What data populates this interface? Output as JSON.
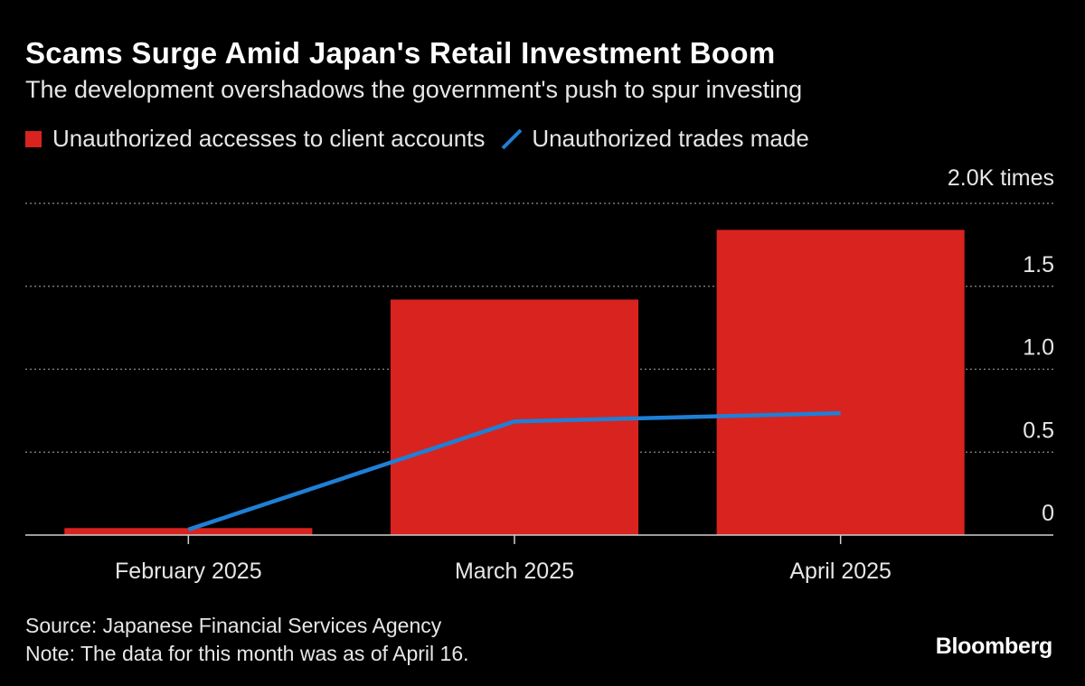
{
  "title": "Scams Surge Amid Japan's Retail Investment Boom",
  "subtitle": "The development overshadows the government's push to spur investing",
  "colors": {
    "bar": "#d9231f",
    "line": "#1f7fd6",
    "grid": "#8c8c8c",
    "background": "#000000"
  },
  "legend": [
    {
      "label": "Unauthorized accesses to client accounts",
      "kind": "bar",
      "color": "#d9231f"
    },
    {
      "label": "Unauthorized trades made",
      "kind": "line",
      "color": "#1f7fd6"
    }
  ],
  "chart_data": {
    "type": "bar",
    "categories": [
      "February 2025",
      "March 2025",
      "April 2025"
    ],
    "series": [
      {
        "name": "Unauthorized accesses to client accounts",
        "type": "bar",
        "values": [
          42,
          1420,
          1840
        ]
      },
      {
        "name": "Unauthorized trades made",
        "type": "line",
        "values": [
          33,
          685,
          735
        ]
      }
    ],
    "ylim": [
      0,
      2000
    ],
    "yticks": [
      {
        "value": 0,
        "label": "0"
      },
      {
        "value": 500,
        "label": "0.5"
      },
      {
        "value": 1000,
        "label": "1.0"
      },
      {
        "value": 1500,
        "label": "1.5"
      },
      {
        "value": 2000,
        "label": "2.0K times"
      }
    ],
    "y_axis_side": "right",
    "grid": true
  },
  "footer": {
    "source": "Source: Japanese Financial Services Agency",
    "note": "Note: The data for this month was as of April 16."
  },
  "brand": "Bloomberg"
}
